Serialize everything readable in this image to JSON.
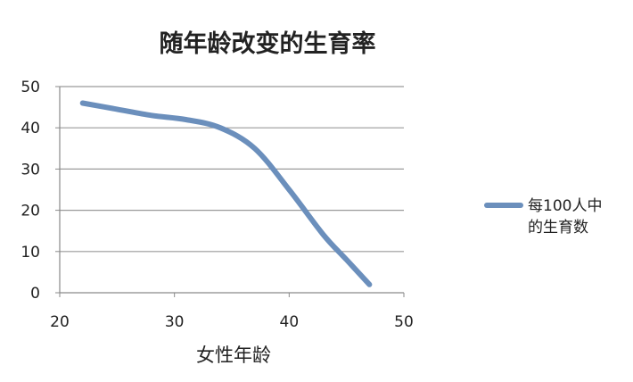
{
  "chart_data": {
    "type": "line",
    "title": "随年龄改变的生育率",
    "xlabel": "女性年龄",
    "ylabel": "",
    "xlim": [
      20,
      50
    ],
    "ylim": [
      0,
      50
    ],
    "xticks": [
      20,
      30,
      40,
      50
    ],
    "yticks": [
      0,
      10,
      20,
      30,
      40,
      50
    ],
    "grid": true,
    "legend_position": "right",
    "colors": {
      "series": "#6b8fbc",
      "grid": "#9a9a9a",
      "axis": "#8a8a8a"
    },
    "series": [
      {
        "name": "每100人中的生育数",
        "name_lines": [
          "每100人中",
          "的生育数"
        ],
        "x": [
          22,
          25,
          28,
          31,
          34,
          37,
          40,
          43,
          45,
          47
        ],
        "y": [
          46,
          44.5,
          43,
          42,
          40,
          35,
          25,
          14,
          8,
          2
        ]
      }
    ]
  }
}
